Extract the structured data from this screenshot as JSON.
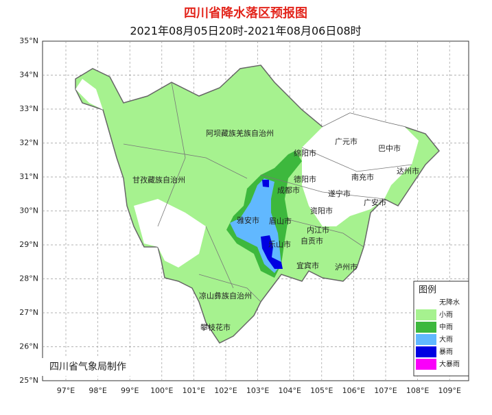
{
  "title": "四川省降水落区预报图",
  "subtitle": "2021年08月05日20时-2021年08月06日08时",
  "lat_labels": [
    "35°N",
    "34°N",
    "33°N",
    "32°N",
    "31°N",
    "30°N",
    "29°N",
    "28°N",
    "27°N",
    "26°N",
    "25°N"
  ],
  "lon_labels": [
    "97°E",
    "98°E",
    "99°E",
    "100°E",
    "101°E",
    "102°E",
    "103°E",
    "104°E",
    "105°E",
    "106°E",
    "107°E",
    "108°E",
    "109°E"
  ],
  "cities": [
    "阿坝藏族羌族自治州",
    "绵阳市",
    "广元市",
    "巴中市",
    "达州市",
    "甘孜藏族自治州",
    "德阳市",
    "南充市",
    "成都市",
    "遂宁市",
    "广安市",
    "资阳市",
    "雅安市",
    "眉山市",
    "内江市",
    "乐山市",
    "自贡市",
    "宜宾市",
    "泸州市",
    "凉山彝族自治州",
    "攀枝花市"
  ],
  "legend": {
    "title": "图例",
    "items": [
      {
        "label": "无降水",
        "color": "#ffffff"
      },
      {
        "label": "小雨",
        "color": "#a6f28f"
      },
      {
        "label": "中雨",
        "color": "#3db83d"
      },
      {
        "label": "大雨",
        "color": "#61b8ff"
      },
      {
        "label": "暴雨",
        "color": "#0000e1"
      },
      {
        "label": "大暴雨",
        "color": "#fa00fa"
      }
    ]
  },
  "credit": "四川省气象局制作"
}
